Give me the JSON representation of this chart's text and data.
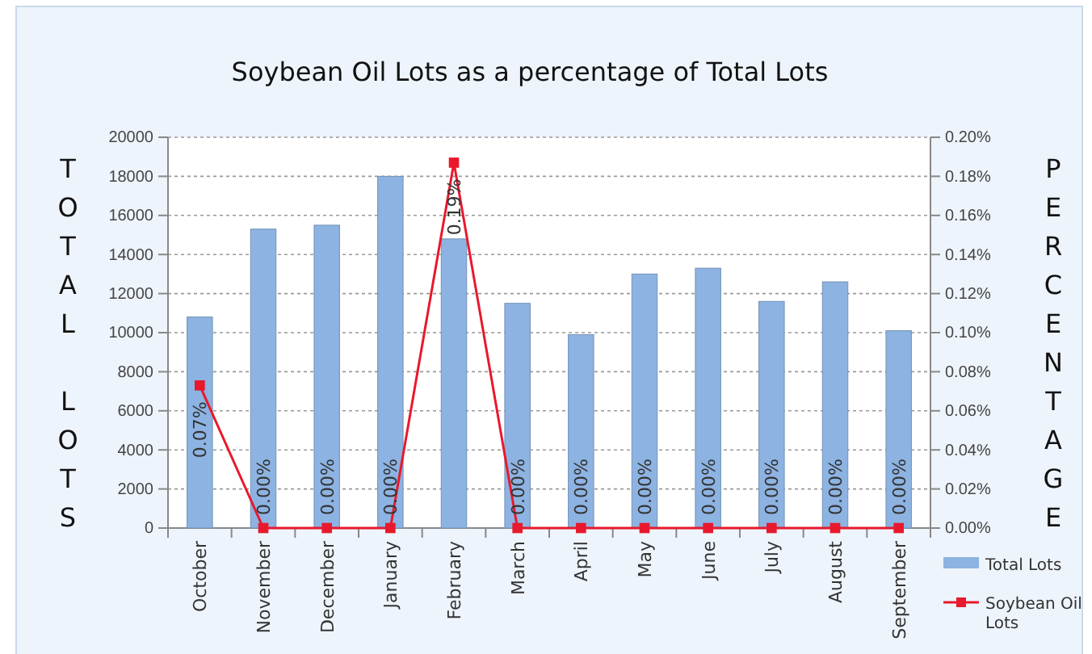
{
  "chart_data": {
    "type": "bar",
    "title": "Soybean Oil Lots as a percentage of Total Lots",
    "ylabel": "TOTAL LOTS",
    "y2label": "PERCENTAGE",
    "categories": [
      "October",
      "November",
      "December",
      "January",
      "February",
      "March",
      "April",
      "May",
      "June",
      "July",
      "August",
      "September"
    ],
    "series": [
      {
        "name": "Total Lots",
        "color": "#8db3e2",
        "values": [
          10800,
          15300,
          15500,
          18000,
          14800,
          11500,
          9900,
          13000,
          13300,
          11600,
          12600,
          10100
        ]
      },
      {
        "name": "Soybean Oil Lots",
        "type": "line",
        "axis": "y2",
        "color": "#e8192c",
        "marker": "square",
        "values": [
          0.073,
          0,
          0,
          0,
          0.187,
          0,
          0,
          0,
          0,
          0,
          0,
          0
        ],
        "value_labels": [
          "0.07%",
          "0.00%",
          "0.00%",
          "0.00%",
          "0.19%",
          "0.00%",
          "0.00%",
          "0.00%",
          "0.00%",
          "0.00%",
          "0.00%",
          "0.00%"
        ]
      }
    ],
    "ylim": [
      0,
      20000
    ],
    "yticks": [
      0,
      2000,
      4000,
      6000,
      8000,
      10000,
      12000,
      14000,
      16000,
      18000,
      20000
    ],
    "y2lim": [
      0,
      0.2
    ],
    "y2ticks": [
      {
        "value": 0,
        "label": "0.00%"
      },
      {
        "value": 0.02,
        "label": "0.02%"
      },
      {
        "value": 0.04,
        "label": "0.04%"
      },
      {
        "value": 0.06,
        "label": "0.06%"
      },
      {
        "value": 0.08,
        "label": "0.08%"
      },
      {
        "value": 0.1,
        "label": "0.10%"
      },
      {
        "value": 0.12,
        "label": "0.12%"
      },
      {
        "value": 0.14,
        "label": "0.14%"
      },
      {
        "value": 0.16,
        "label": "0.16%"
      },
      {
        "value": 0.18,
        "label": "0.18%"
      },
      {
        "value": 0.2,
        "label": "0.20%"
      }
    ],
    "grid": "y",
    "legend": "bottom right"
  }
}
